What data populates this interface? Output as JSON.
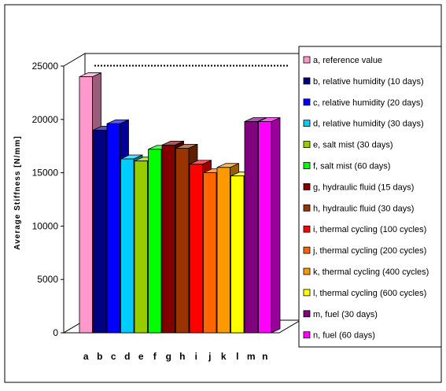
{
  "chart_data": {
    "type": "bar",
    "title": "",
    "xlabel": "",
    "ylabel": "Average Stiffness [N/mm]",
    "ylim": [
      0,
      25000
    ],
    "yticks": [
      0,
      5000,
      10000,
      15000,
      20000,
      25000
    ],
    "grid": false,
    "three_d": true,
    "legend_position": "right",
    "reference_line": {
      "value": 24000,
      "style": "dotted"
    },
    "categories": [
      "a",
      "b",
      "c",
      "d",
      "e",
      "f",
      "g",
      "h",
      "i",
      "j",
      "k",
      "l",
      "m",
      "n"
    ],
    "values": [
      24000,
      19000,
      19600,
      16300,
      16100,
      17200,
      17600,
      17300,
      15800,
      15000,
      15500,
      14700,
      19800,
      19800
    ],
    "legend": [
      "a, reference value",
      "b, relative humidity (10 days)",
      "c, relative humidity (20 days)",
      "d, relative humidity (30 days)",
      "e, salt mist (30 days)",
      "f, salt mist (60 days)",
      "g, hydraulic fluid (15 days)",
      "h, hydraulic fluid (30 days)",
      "i, thermal cycling (100 cycles)",
      "j, thermal cycling (200 cycles)",
      "k, thermal cycling (400 cycles)",
      "l, thermal cycling (600 cycles)",
      "m, fuel (30 days)",
      "n, fuel (60 days)"
    ],
    "colors": [
      "#ff99cc",
      "#000080",
      "#0000ff",
      "#00ccff",
      "#99cc00",
      "#00ff00",
      "#800000",
      "#993300",
      "#ff0000",
      "#ff6600",
      "#ff9900",
      "#ffff00",
      "#800080",
      "#ff00ff"
    ]
  }
}
